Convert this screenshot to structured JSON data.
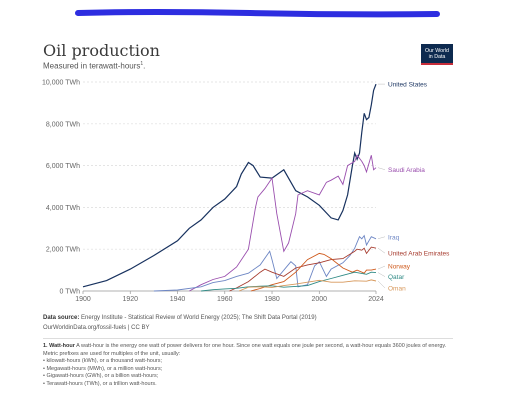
{
  "header": {
    "title": "Oil production",
    "subtitle_text": "Measured in terawatt-hours",
    "subtitle_sup": "1",
    "subtitle_end": ".",
    "logo_line1": "Our World",
    "logo_line2": "in Data"
  },
  "colors": {
    "United States": "#18325f",
    "Saudi Arabia": "#9a4fae",
    "Iraq": "#6d86c4",
    "United Arab Emirates": "#a63b2e",
    "Norway": "#cf5a1c",
    "Qatar": "#2f8a85",
    "Oman": "#d7985b",
    "scribble": "#2d2de0"
  },
  "chart_data": {
    "type": "line",
    "title": "Oil production",
    "subtitle": "Measured in terawatt-hours",
    "xlim": [
      1900,
      2024
    ],
    "ylim": [
      0,
      10000
    ],
    "y_ticks": [
      {
        "value": 0,
        "label": "0 TWh"
      },
      {
        "value": 2000,
        "label": "2,000 TWh"
      },
      {
        "value": 4000,
        "label": "4,000 TWh"
      },
      {
        "value": 6000,
        "label": "6,000 TWh"
      },
      {
        "value": 8000,
        "label": "8,000 TWh"
      },
      {
        "value": 10000,
        "label": "10,000 TWh"
      }
    ],
    "x_ticks": [
      1900,
      1920,
      1940,
      1960,
      1980,
      2000,
      2024
    ],
    "grid": "horizontal dashed",
    "legend": "line labels at right",
    "series": [
      {
        "name": "United States",
        "points": [
          [
            1900,
            200
          ],
          [
            1910,
            500
          ],
          [
            1920,
            1050
          ],
          [
            1930,
            1700
          ],
          [
            1940,
            2400
          ],
          [
            1945,
            3000
          ],
          [
            1950,
            3400
          ],
          [
            1955,
            4000
          ],
          [
            1960,
            4400
          ],
          [
            1965,
            5000
          ],
          [
            1967,
            5600
          ],
          [
            1970,
            6150
          ],
          [
            1972,
            6000
          ],
          [
            1975,
            5450
          ],
          [
            1980,
            5400
          ],
          [
            1985,
            5800
          ],
          [
            1990,
            4800
          ],
          [
            1995,
            4500
          ],
          [
            2000,
            4100
          ],
          [
            2005,
            3500
          ],
          [
            2008,
            3400
          ],
          [
            2010,
            3850
          ],
          [
            2012,
            4600
          ],
          [
            2014,
            6000
          ],
          [
            2015,
            6600
          ],
          [
            2016,
            6300
          ],
          [
            2017,
            6600
          ],
          [
            2018,
            7600
          ],
          [
            2019,
            8500
          ],
          [
            2020,
            8200
          ],
          [
            2021,
            8300
          ],
          [
            2022,
            8900
          ],
          [
            2023,
            9600
          ],
          [
            2024,
            9900
          ]
        ]
      },
      {
        "name": "Saudi Arabia",
        "points": [
          [
            1945,
            0
          ],
          [
            1950,
            300
          ],
          [
            1955,
            550
          ],
          [
            1960,
            700
          ],
          [
            1965,
            1150
          ],
          [
            1970,
            2000
          ],
          [
            1973,
            4000
          ],
          [
            1974,
            4500
          ],
          [
            1977,
            4900
          ],
          [
            1980,
            5400
          ],
          [
            1982,
            3700
          ],
          [
            1985,
            1900
          ],
          [
            1987,
            2300
          ],
          [
            1990,
            3700
          ],
          [
            1991,
            4600
          ],
          [
            1995,
            4800
          ],
          [
            2000,
            4600
          ],
          [
            2003,
            5200
          ],
          [
            2005,
            5300
          ],
          [
            2008,
            5500
          ],
          [
            2010,
            5100
          ],
          [
            2012,
            6000
          ],
          [
            2015,
            6200
          ],
          [
            2016,
            6500
          ],
          [
            2018,
            6200
          ],
          [
            2019,
            6000
          ],
          [
            2020,
            5700
          ],
          [
            2022,
            6500
          ],
          [
            2023,
            5800
          ],
          [
            2024,
            5900
          ]
        ]
      },
      {
        "name": "Iraq",
        "points": [
          [
            1930,
            0
          ],
          [
            1940,
            50
          ],
          [
            1950,
            200
          ],
          [
            1955,
            400
          ],
          [
            1960,
            500
          ],
          [
            1965,
            700
          ],
          [
            1970,
            850
          ],
          [
            1975,
            1250
          ],
          [
            1979,
            1900
          ],
          [
            1980,
            1500
          ],
          [
            1982,
            600
          ],
          [
            1988,
            1400
          ],
          [
            1990,
            1200
          ],
          [
            1991,
            200
          ],
          [
            1995,
            300
          ],
          [
            1998,
            1200
          ],
          [
            2000,
            1400
          ],
          [
            2003,
            700
          ],
          [
            2005,
            1050
          ],
          [
            2010,
            1350
          ],
          [
            2013,
            1700
          ],
          [
            2015,
            2050
          ],
          [
            2017,
            2600
          ],
          [
            2018,
            2500
          ],
          [
            2019,
            2650
          ],
          [
            2020,
            2200
          ],
          [
            2022,
            2600
          ],
          [
            2024,
            2500
          ]
        ]
      },
      {
        "name": "United Arab Emirates",
        "points": [
          [
            1962,
            0
          ],
          [
            1965,
            150
          ],
          [
            1970,
            450
          ],
          [
            1975,
            900
          ],
          [
            1977,
            1050
          ],
          [
            1980,
            900
          ],
          [
            1985,
            700
          ],
          [
            1990,
            1100
          ],
          [
            1995,
            1250
          ],
          [
            2000,
            1350
          ],
          [
            2005,
            1500
          ],
          [
            2010,
            1550
          ],
          [
            2015,
            1900
          ],
          [
            2016,
            2000
          ],
          [
            2018,
            1950
          ],
          [
            2019,
            2050
          ],
          [
            2020,
            1800
          ],
          [
            2022,
            2100
          ],
          [
            2024,
            2050
          ]
        ]
      },
      {
        "name": "Norway",
        "points": [
          [
            1971,
            0
          ],
          [
            1975,
            120
          ],
          [
            1980,
            300
          ],
          [
            1985,
            450
          ],
          [
            1990,
            900
          ],
          [
            1995,
            1500
          ],
          [
            2000,
            1800
          ],
          [
            2002,
            1750
          ],
          [
            2005,
            1550
          ],
          [
            2010,
            1100
          ],
          [
            2014,
            900
          ],
          [
            2016,
            1000
          ],
          [
            2019,
            850
          ],
          [
            2020,
            1000
          ],
          [
            2022,
            1000
          ],
          [
            2024,
            1050
          ]
        ]
      },
      {
        "name": "Qatar",
        "points": [
          [
            1950,
            0
          ],
          [
            1955,
            60
          ],
          [
            1960,
            100
          ],
          [
            1965,
            130
          ],
          [
            1970,
            200
          ],
          [
            1975,
            230
          ],
          [
            1980,
            250
          ],
          [
            1985,
            180
          ],
          [
            1990,
            220
          ],
          [
            1995,
            260
          ],
          [
            2000,
            450
          ],
          [
            2005,
            600
          ],
          [
            2010,
            750
          ],
          [
            2015,
            900
          ],
          [
            2020,
            800
          ],
          [
            2022,
            900
          ],
          [
            2024,
            880
          ]
        ]
      },
      {
        "name": "Oman",
        "points": [
          [
            1966,
            0
          ],
          [
            1970,
            180
          ],
          [
            1975,
            200
          ],
          [
            1980,
            170
          ],
          [
            1985,
            260
          ],
          [
            1990,
            330
          ],
          [
            1995,
            420
          ],
          [
            2000,
            510
          ],
          [
            2005,
            420
          ],
          [
            2010,
            420
          ],
          [
            2015,
            490
          ],
          [
            2020,
            470
          ],
          [
            2022,
            530
          ],
          [
            2024,
            480
          ]
        ]
      }
    ]
  },
  "source": {
    "label": "Data source:",
    "text": "Energy Institute - Statistical Review of World Energy (2025); The Shift Data Portal (2019)",
    "url_line": "OurWorldinData.org/fossil-fuels | CC BY"
  },
  "footnote": {
    "heading": "1. Watt-hour",
    "body": "A watt-hour is the energy one watt of power delivers for one hour. Since one watt equals one joule per second, a watt-hour equals 3600 joules of energy.",
    "prefix_intro": "Metric prefixes are used for multiples of the unit, usually:",
    "items": [
      "• kilowatt-hours (kWh), or a thousand watt-hours;",
      "• Megawatt-hours (MWh), or a million watt-hours;",
      "• Gigawatt-hours (GWh), or a billion watt-hours;",
      "• Terawatt-hours (TWh), or a trillion watt-hours."
    ]
  }
}
